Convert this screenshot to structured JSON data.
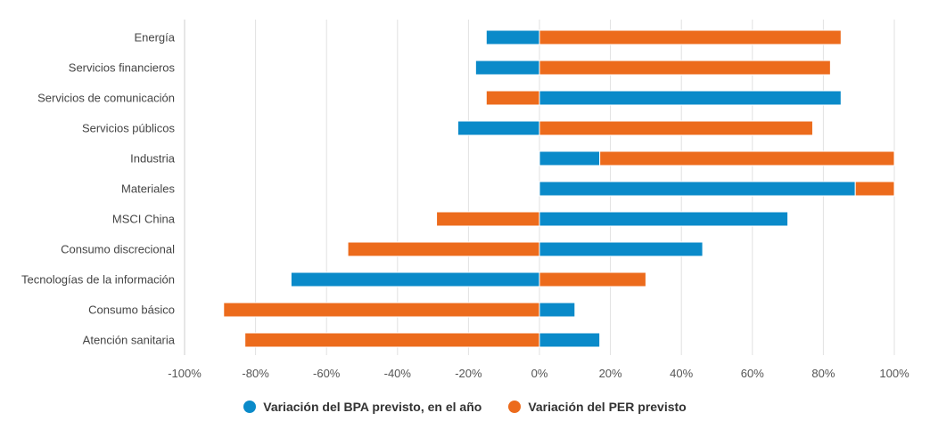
{
  "chart_data": {
    "type": "bar",
    "orientation": "horizontal",
    "stacked": true,
    "title": "",
    "xlabel": "",
    "ylabel": "",
    "xlim": [
      -100,
      100
    ],
    "x_ticks": [
      -100,
      -80,
      -60,
      -40,
      -20,
      0,
      20,
      40,
      60,
      80,
      100
    ],
    "x_tick_labels": [
      "-100%",
      "-80%",
      "-60%",
      "-40%",
      "-20%",
      "0%",
      "20%",
      "40%",
      "60%",
      "80%",
      "100%"
    ],
    "grid": true,
    "legend_position": "bottom",
    "categories": [
      "Energía",
      "Servicios financieros",
      "Servicios de comunicación",
      "Servicios públicos",
      "Industria",
      "Materiales",
      "MSCI China",
      "Consumo discrecional",
      "Tecnologías de la información",
      "Consumo básico",
      "Atención sanitaria"
    ],
    "series": [
      {
        "name": "Variación del BPA previsto, en el año",
        "color": "#0a8ac9",
        "values": [
          -15,
          -18,
          85,
          -23,
          17,
          89,
          70,
          46,
          -70,
          10,
          17
        ]
      },
      {
        "name": "Variación del PER previsto",
        "color": "#ec6b1c",
        "values": [
          85,
          82,
          -15,
          77,
          83,
          11,
          -29,
          -54,
          30,
          -89,
          -83
        ]
      }
    ]
  }
}
